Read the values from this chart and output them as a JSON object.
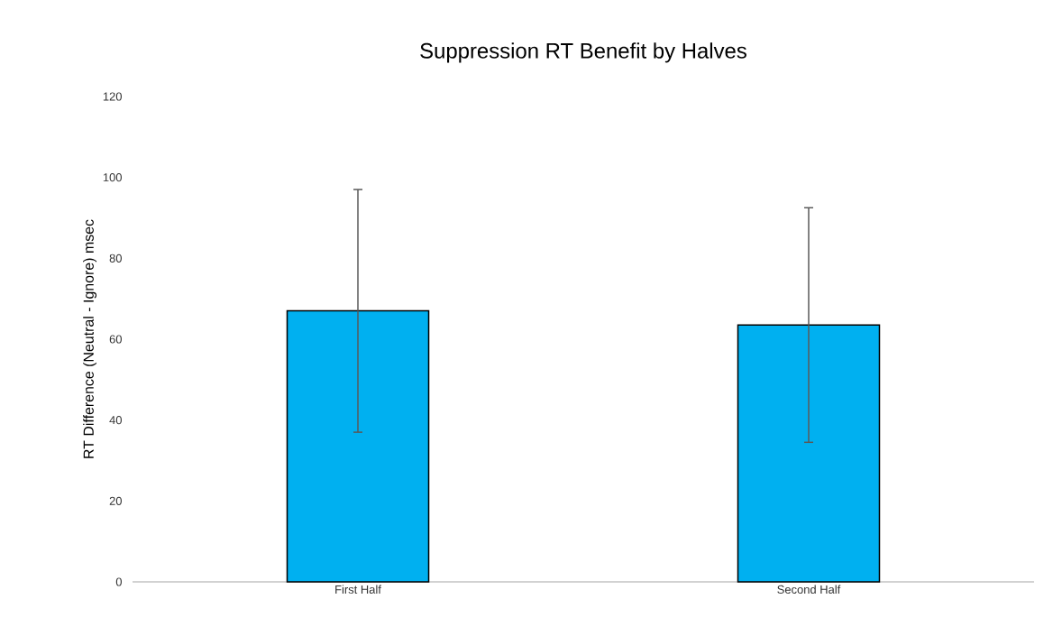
{
  "chart_data": {
    "type": "bar",
    "title": "Suppression RT Benefit by Halves",
    "ylabel": "RT Difference (Neutral - Ignore) msec",
    "categories": [
      "First Half",
      "Second Half"
    ],
    "values": [
      67,
      63.5
    ],
    "errors": [
      30,
      29
    ],
    "color": "#00b0f0",
    "ylim": [
      0,
      120
    ],
    "yticks": [
      0,
      20,
      40,
      60,
      80,
      100,
      120
    ]
  }
}
